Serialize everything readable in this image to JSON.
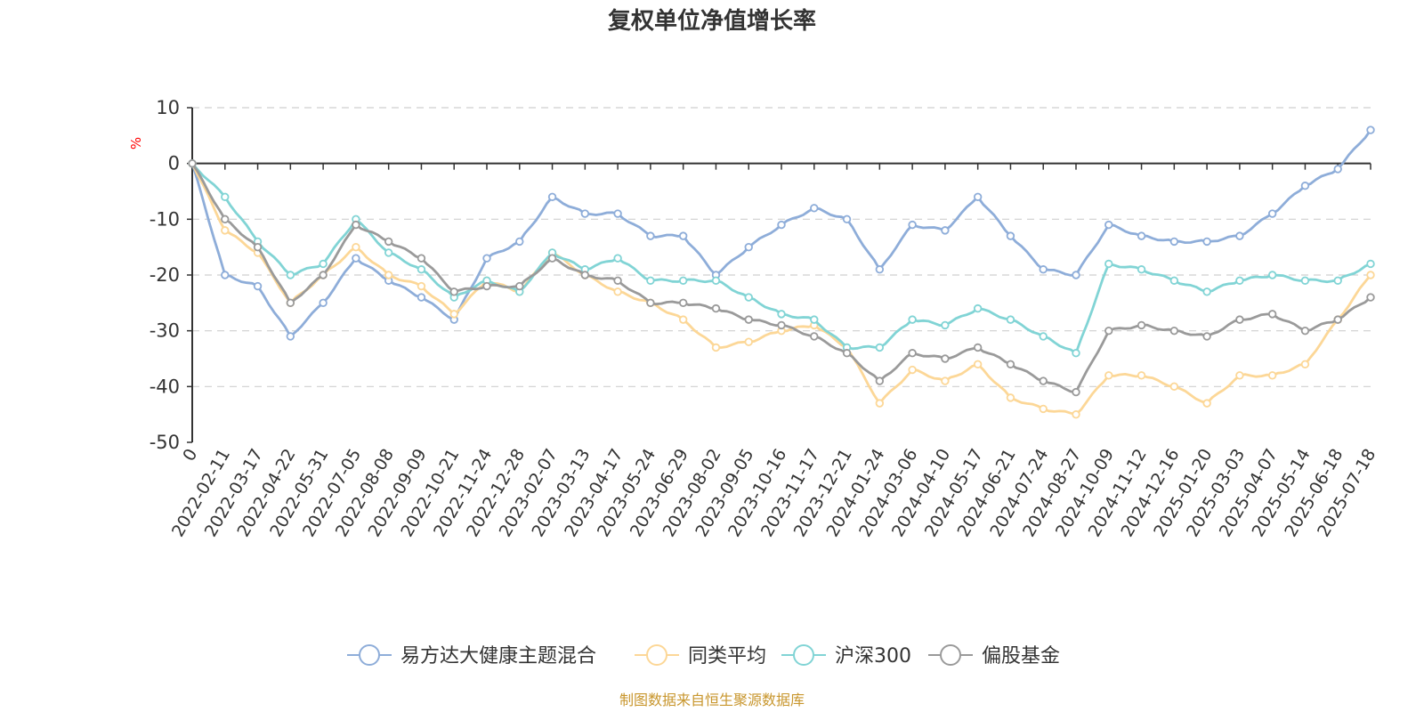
{
  "chart_data": {
    "type": "line",
    "title": "复权单位净值增长率",
    "ylabel": "%",
    "ylim": [
      -50,
      10
    ],
    "yticks": [
      10,
      0,
      -10,
      -20,
      -30,
      -40,
      -50
    ],
    "grid": true,
    "legend_position": "bottom",
    "source": "制图数据来自恒生聚源数据库",
    "categories": [
      "0",
      "2022-02-11",
      "2022-03-17",
      "2022-04-22",
      "2022-05-31",
      "2022-07-05",
      "2022-08-08",
      "2022-09-09",
      "2022-10-21",
      "2022-11-24",
      "2022-12-28",
      "2023-02-07",
      "2023-03-13",
      "2023-04-17",
      "2023-05-24",
      "2023-06-29",
      "2023-08-02",
      "2023-09-05",
      "2023-10-16",
      "2023-11-17",
      "2023-12-21",
      "2024-01-24",
      "2024-03-06",
      "2024-04-10",
      "2024-05-17",
      "2024-06-21",
      "2024-07-24",
      "2024-08-27",
      "2024-10-09",
      "2024-11-12",
      "2024-12-16",
      "2025-01-20",
      "2025-03-03",
      "2025-04-07",
      "2025-05-14",
      "2025-06-18",
      "2025-07-18"
    ],
    "series": [
      {
        "name": "易方达大健康主题混合",
        "color": "#8eadd9",
        "values": [
          0,
          -20,
          -22,
          -31,
          -25,
          -17,
          -21,
          -24,
          -28,
          -17,
          -14,
          -6,
          -9,
          -9,
          -13,
          -13,
          -20,
          -15,
          -11,
          -8,
          -10,
          -19,
          -11,
          -12,
          -6,
          -13,
          -19,
          -20,
          -11,
          -13,
          -14,
          -14,
          -13,
          -9,
          -4,
          -1,
          6
        ]
      },
      {
        "name": "同类平均",
        "color": "#fcd797",
        "values": [
          0,
          -12,
          -16,
          -25,
          -20,
          -15,
          -20,
          -22,
          -27,
          -21,
          -23,
          -16,
          -20,
          -23,
          -25,
          -28,
          -33,
          -32,
          -30,
          -29,
          -33,
          -43,
          -37,
          -39,
          -36,
          -42,
          -44,
          -45,
          -38,
          -38,
          -40,
          -43,
          -38,
          -38,
          -36,
          -28,
          -20
        ]
      },
      {
        "name": "沪深300",
        "color": "#81d4d5",
        "values": [
          0,
          -6,
          -14,
          -20,
          -18,
          -10,
          -16,
          -19,
          -24,
          -21,
          -23,
          -16,
          -19,
          -17,
          -21,
          -21,
          -21,
          -24,
          -27,
          -28,
          -33,
          -33,
          -28,
          -29,
          -26,
          -28,
          -31,
          -34,
          -18,
          -19,
          -21,
          -23,
          -21,
          -20,
          -21,
          -21,
          -18
        ]
      },
      {
        "name": "偏股基金",
        "color": "#9a9a9a",
        "values": [
          0,
          -10,
          -15,
          -25,
          -20,
          -11,
          -14,
          -17,
          -23,
          -22,
          -22,
          -17,
          -20,
          -21,
          -25,
          -25,
          -26,
          -28,
          -29,
          -31,
          -34,
          -39,
          -34,
          -35,
          -33,
          -36,
          -39,
          -41,
          -30,
          -29,
          -30,
          -31,
          -28,
          -27,
          -30,
          -28,
          -24
        ]
      }
    ]
  }
}
